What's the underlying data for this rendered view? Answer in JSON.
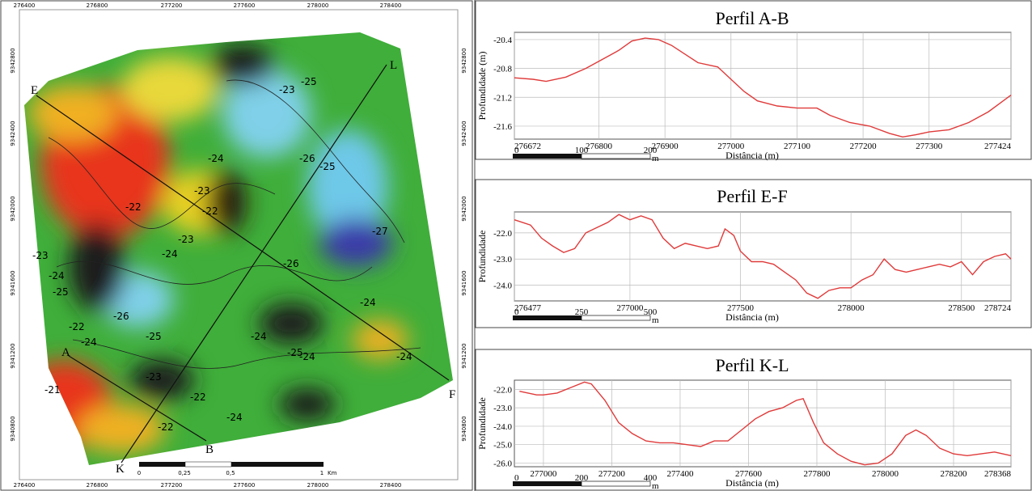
{
  "map": {
    "top_ticks": [
      "276400",
      "276800",
      "277200",
      "277600",
      "278000",
      "278400"
    ],
    "bottom_ticks": [
      "276400",
      "276800",
      "277200",
      "277600",
      "278000",
      "278400"
    ],
    "left_ticks": [
      "9342800",
      "9342400",
      "9342000",
      "9341600",
      "9341200",
      "9340800"
    ],
    "right_ticks": [
      "9342800",
      "9342400",
      "9342000",
      "9341600",
      "9341200",
      "9340800"
    ],
    "profile_points": [
      "E",
      "F",
      "L",
      "K",
      "A",
      "B"
    ],
    "contour_labels": [
      "-23",
      "-25",
      "-24",
      "-25",
      "-26",
      "-23",
      "-22",
      "-22",
      "-23",
      "-27",
      "-26",
      "-24",
      "-23",
      "-24",
      "-25",
      "-26",
      "-25",
      "-24",
      "-24",
      "-22",
      "-24",
      "-21",
      "-23",
      "-22",
      "-24",
      "-25",
      "-24",
      "-24",
      "-22"
    ],
    "scale_bar": [
      "0",
      "0,25",
      "0,5",
      "1",
      "Km"
    ]
  },
  "chart_data": [
    {
      "type": "line",
      "title": "Perfil A-B",
      "y_label": "Profundidade (m)",
      "x_label": "Distância (m)",
      "color": "#e03a3a",
      "grid": true,
      "xlim": [
        276672,
        277424
      ],
      "xticks": [
        276672,
        276800,
        276900,
        277000,
        277100,
        277200,
        277300,
        277424
      ],
      "ylim": [
        -21.78,
        -20.3
      ],
      "yticks": [
        -20.4,
        -20.8,
        -21.2,
        -21.6
      ],
      "x": [
        276672,
        276700,
        276720,
        276750,
        276780,
        276800,
        276830,
        276850,
        276870,
        276890,
        276910,
        276930,
        276950,
        276980,
        277000,
        277020,
        277040,
        277070,
        277100,
        277130,
        277150,
        277180,
        277210,
        277240,
        277260,
        277280,
        277300,
        277330,
        277360,
        277390,
        277424
      ],
      "values": [
        -20.93,
        -20.95,
        -20.98,
        -20.92,
        -20.8,
        -20.7,
        -20.55,
        -20.42,
        -20.38,
        -20.4,
        -20.48,
        -20.6,
        -20.72,
        -20.78,
        -20.95,
        -21.12,
        -21.25,
        -21.32,
        -21.35,
        -21.35,
        -21.45,
        -21.55,
        -21.6,
        -21.7,
        -21.75,
        -21.72,
        -21.68,
        -21.65,
        -21.55,
        -21.4,
        -21.17
      ],
      "scale_bar": [
        "0",
        "100",
        "200",
        "m"
      ]
    },
    {
      "type": "line",
      "title": "Perfil E-F",
      "y_label": "Profundidade",
      "x_label": "Distância (m)",
      "color": "#e03a3a",
      "grid": true,
      "xlim": [
        276477,
        278724
      ],
      "xticks": [
        276477,
        277000,
        277500,
        278000,
        278500,
        278724
      ],
      "ylim": [
        -24.6,
        -21.2
      ],
      "yticks": [
        {
          "value": -22,
          "label": "-22.0"
        },
        {
          "value": -23,
          "label": "-23.0"
        },
        {
          "value": -24,
          "label": "-24.0"
        }
      ],
      "x": [
        276477,
        276550,
        276600,
        276650,
        276700,
        276750,
        276800,
        276850,
        276900,
        276950,
        277000,
        277050,
        277100,
        277150,
        277200,
        277250,
        277300,
        277350,
        277400,
        277430,
        277470,
        277500,
        277550,
        277600,
        277650,
        277700,
        277750,
        277800,
        277850,
        277900,
        277950,
        278000,
        278050,
        278100,
        278150,
        278200,
        278250,
        278300,
        278350,
        278400,
        278450,
        278500,
        278550,
        278600,
        278650,
        278700,
        278724
      ],
      "values": [
        -21.5,
        -21.7,
        -22.2,
        -22.5,
        -22.75,
        -22.6,
        -22.0,
        -21.8,
        -21.6,
        -21.3,
        -21.5,
        -21.35,
        -21.5,
        -22.2,
        -22.6,
        -22.4,
        -22.5,
        -22.6,
        -22.5,
        -21.85,
        -22.1,
        -22.7,
        -23.1,
        -23.1,
        -23.2,
        -23.5,
        -23.8,
        -24.3,
        -24.5,
        -24.2,
        -24.1,
        -24.1,
        -23.8,
        -23.6,
        -23.0,
        -23.4,
        -23.5,
        -23.4,
        -23.3,
        -23.2,
        -23.3,
        -23.1,
        -23.6,
        -23.1,
        -22.9,
        -22.8,
        -23.0
      ],
      "scale_bar": [
        "0",
        "250",
        "500",
        "m"
      ]
    },
    {
      "type": "line",
      "title": "Perfil K-L",
      "y_label": "Profundidade",
      "x_label": "Distância (m)",
      "color": "#e03a3a",
      "grid": true,
      "xlim": [
        276915,
        278368
      ],
      "xticks": [
        277000,
        277200,
        277400,
        277600,
        277800,
        278000,
        278200,
        278368
      ],
      "ylim": [
        -26.2,
        -21.5
      ],
      "yticks": [
        {
          "value": -22,
          "label": "-22.0"
        },
        {
          "value": -23,
          "label": "-23.0"
        },
        {
          "value": -24,
          "label": "-24.0"
        },
        {
          "value": -25,
          "label": "-25.0"
        },
        {
          "value": -26,
          "label": "-26.0"
        }
      ],
      "x": [
        276930,
        276980,
        277000,
        277040,
        277080,
        277120,
        277140,
        277180,
        277220,
        277260,
        277300,
        277340,
        277380,
        277420,
        277460,
        277500,
        277540,
        277580,
        277620,
        277660,
        277700,
        277740,
        277760,
        277790,
        277820,
        277860,
        277900,
        277940,
        277980,
        278020,
        278060,
        278090,
        278120,
        278160,
        278200,
        278240,
        278280,
        278320,
        278368
      ],
      "values": [
        -22.1,
        -22.3,
        -22.3,
        -22.2,
        -21.9,
        -21.6,
        -21.7,
        -22.6,
        -23.8,
        -24.4,
        -24.8,
        -24.9,
        -24.9,
        -25.0,
        -25.1,
        -24.8,
        -24.8,
        -24.2,
        -23.6,
        -23.2,
        -23.0,
        -22.6,
        -22.5,
        -23.8,
        -24.9,
        -25.5,
        -25.9,
        -26.1,
        -26.0,
        -25.5,
        -24.5,
        -24.2,
        -24.5,
        -25.2,
        -25.5,
        -25.6,
        -25.5,
        -25.4,
        -25.6
      ],
      "scale_bar": [
        "0",
        "200",
        "400",
        "m"
      ]
    }
  ]
}
